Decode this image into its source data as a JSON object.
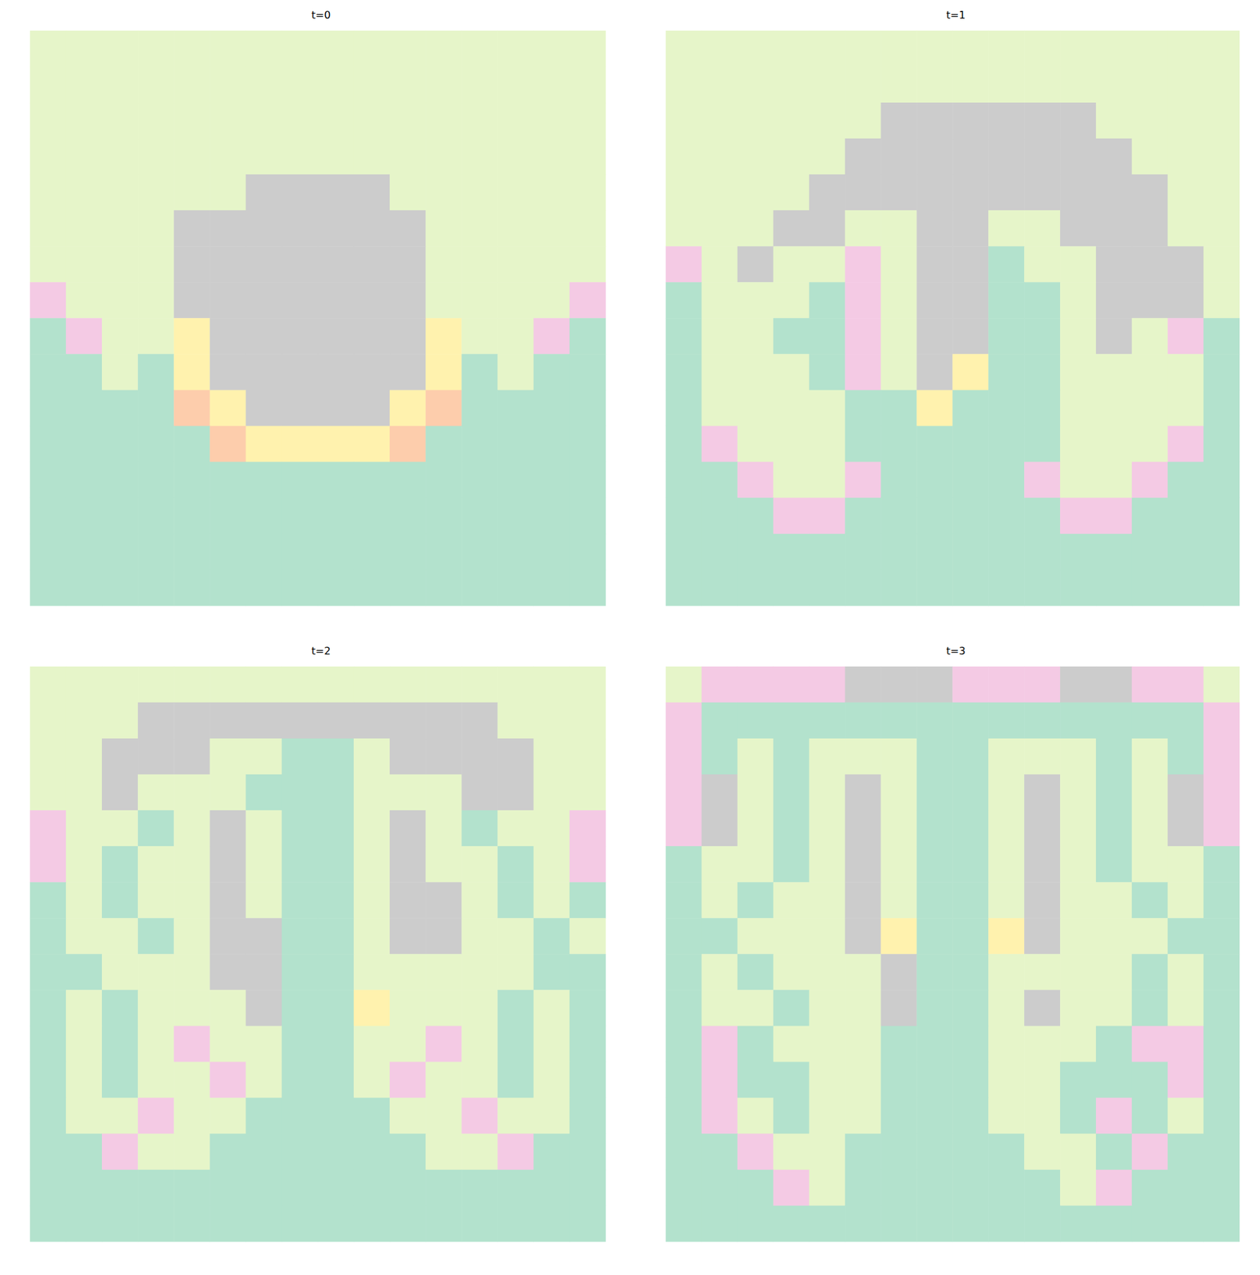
{
  "chart_data": [
    {
      "type": "heatmap",
      "title": "t=0",
      "tick_labels": false,
      "zlim": [
        0,
        7
      ],
      "colors": [
        "#b3e2cd",
        "#fdcdac",
        "#cbd5e8",
        "#f4cae4",
        "#e6f5c9",
        "#fff2ae",
        "#f1e2cc",
        "#cccccc"
      ],
      "cells": [
        [
          4,
          4,
          4,
          4,
          4,
          4,
          4,
          4,
          4,
          4,
          4,
          4,
          4,
          4,
          4,
          4
        ],
        [
          4,
          4,
          4,
          4,
          4,
          4,
          4,
          4,
          4,
          4,
          4,
          4,
          4,
          4,
          4,
          4
        ],
        [
          4,
          4,
          4,
          4,
          4,
          4,
          4,
          4,
          4,
          4,
          4,
          4,
          4,
          4,
          4,
          4
        ],
        [
          4,
          4,
          4,
          4,
          4,
          4,
          4,
          4,
          4,
          4,
          4,
          4,
          4,
          4,
          4,
          4
        ],
        [
          4,
          4,
          4,
          4,
          4,
          4,
          7,
          7,
          7,
          7,
          4,
          4,
          4,
          4,
          4,
          4
        ],
        [
          4,
          4,
          4,
          4,
          7,
          7,
          7,
          7,
          7,
          7,
          7,
          4,
          4,
          4,
          4,
          4
        ],
        [
          4,
          4,
          4,
          4,
          7,
          7,
          7,
          7,
          7,
          7,
          7,
          4,
          4,
          4,
          4,
          4
        ],
        [
          3,
          4,
          4,
          4,
          7,
          7,
          7,
          7,
          7,
          7,
          7,
          4,
          4,
          4,
          4,
          3
        ],
        [
          0,
          3,
          4,
          4,
          5,
          7,
          7,
          7,
          7,
          7,
          7,
          5,
          4,
          4,
          3,
          0
        ],
        [
          0,
          0,
          4,
          0,
          5,
          7,
          7,
          7,
          7,
          7,
          7,
          5,
          0,
          4,
          0,
          0
        ],
        [
          0,
          0,
          0,
          0,
          1,
          5,
          7,
          7,
          7,
          7,
          5,
          1,
          0,
          0,
          0,
          0
        ],
        [
          0,
          0,
          0,
          0,
          0,
          1,
          5,
          5,
          5,
          5,
          1,
          0,
          0,
          0,
          0,
          0
        ],
        [
          0,
          0,
          0,
          0,
          0,
          0,
          0,
          0,
          0,
          0,
          0,
          0,
          0,
          0,
          0,
          0
        ],
        [
          0,
          0,
          0,
          0,
          0,
          0,
          0,
          0,
          0,
          0,
          0,
          0,
          0,
          0,
          0,
          0
        ],
        [
          0,
          0,
          0,
          0,
          0,
          0,
          0,
          0,
          0,
          0,
          0,
          0,
          0,
          0,
          0,
          0
        ],
        [
          0,
          0,
          0,
          0,
          0,
          0,
          0,
          0,
          0,
          0,
          0,
          0,
          0,
          0,
          0,
          0
        ]
      ]
    },
    {
      "type": "heatmap",
      "title": "t=1",
      "tick_labels": false,
      "zlim": [
        0,
        7
      ],
      "colors": [
        "#b3e2cd",
        "#fdcdac",
        "#cbd5e8",
        "#f4cae4",
        "#e6f5c9",
        "#fff2ae",
        "#f1e2cc",
        "#cccccc"
      ],
      "cells": [
        [
          4,
          4,
          4,
          4,
          4,
          4,
          4,
          4,
          4,
          4,
          4,
          4,
          4,
          4,
          4,
          4
        ],
        [
          4,
          4,
          4,
          4,
          4,
          4,
          4,
          4,
          4,
          4,
          4,
          4,
          4,
          4,
          4,
          4
        ],
        [
          4,
          4,
          4,
          4,
          4,
          4,
          7,
          7,
          7,
          7,
          7,
          7,
          4,
          4,
          4,
          4
        ],
        [
          4,
          4,
          4,
          4,
          4,
          7,
          7,
          7,
          7,
          7,
          7,
          7,
          7,
          4,
          4,
          4
        ],
        [
          4,
          4,
          4,
          4,
          7,
          7,
          7,
          7,
          7,
          7,
          7,
          7,
          7,
          7,
          4,
          4
        ],
        [
          4,
          4,
          4,
          7,
          7,
          4,
          4,
          7,
          7,
          4,
          4,
          7,
          7,
          7,
          4,
          4
        ],
        [
          3,
          4,
          7,
          4,
          4,
          3,
          4,
          7,
          7,
          0,
          4,
          4,
          7,
          7,
          7,
          4
        ],
        [
          0,
          4,
          4,
          4,
          0,
          3,
          4,
          7,
          7,
          0,
          0,
          4,
          7,
          7,
          7,
          4
        ],
        [
          0,
          4,
          4,
          0,
          0,
          3,
          4,
          7,
          7,
          0,
          0,
          4,
          7,
          4,
          3,
          0
        ],
        [
          0,
          4,
          4,
          4,
          0,
          3,
          4,
          7,
          5,
          0,
          0,
          4,
          4,
          4,
          4,
          0
        ],
        [
          0,
          4,
          4,
          4,
          4,
          0,
          0,
          5,
          0,
          0,
          0,
          4,
          4,
          4,
          4,
          0
        ],
        [
          0,
          3,
          4,
          4,
          4,
          0,
          0,
          0,
          0,
          0,
          0,
          4,
          4,
          4,
          3,
          0
        ],
        [
          0,
          0,
          3,
          4,
          4,
          3,
          0,
          0,
          0,
          0,
          3,
          4,
          4,
          3,
          0,
          0
        ],
        [
          0,
          0,
          0,
          3,
          3,
          0,
          0,
          0,
          0,
          0,
          0,
          3,
          3,
          0,
          0,
          0
        ],
        [
          0,
          0,
          0,
          0,
          0,
          0,
          0,
          0,
          0,
          0,
          0,
          0,
          0,
          0,
          0,
          0
        ],
        [
          0,
          0,
          0,
          0,
          0,
          0,
          0,
          0,
          0,
          0,
          0,
          0,
          0,
          0,
          0,
          0
        ]
      ]
    },
    {
      "type": "heatmap",
      "title": "t=2",
      "tick_labels": false,
      "zlim": [
        0,
        7
      ],
      "colors": [
        "#b3e2cd",
        "#fdcdac",
        "#cbd5e8",
        "#f4cae4",
        "#e6f5c9",
        "#fff2ae",
        "#f1e2cc",
        "#cccccc"
      ],
      "cells": [
        [
          4,
          4,
          4,
          4,
          4,
          4,
          4,
          4,
          4,
          4,
          4,
          4,
          4,
          4,
          4,
          4
        ],
        [
          4,
          4,
          4,
          7,
          7,
          7,
          7,
          7,
          7,
          7,
          7,
          7,
          7,
          4,
          4,
          4
        ],
        [
          4,
          4,
          7,
          7,
          7,
          4,
          4,
          0,
          0,
          4,
          7,
          7,
          7,
          7,
          4,
          4
        ],
        [
          4,
          4,
          7,
          4,
          4,
          4,
          0,
          0,
          0,
          4,
          4,
          4,
          7,
          7,
          4,
          4
        ],
        [
          3,
          4,
          4,
          0,
          4,
          7,
          4,
          0,
          0,
          4,
          7,
          4,
          0,
          4,
          4,
          3
        ],
        [
          3,
          4,
          0,
          4,
          4,
          7,
          4,
          0,
          0,
          4,
          7,
          4,
          4,
          0,
          4,
          3
        ],
        [
          0,
          4,
          0,
          4,
          4,
          7,
          4,
          0,
          0,
          4,
          7,
          7,
          4,
          0,
          4,
          0
        ],
        [
          0,
          4,
          4,
          0,
          4,
          7,
          7,
          0,
          0,
          4,
          7,
          7,
          4,
          4,
          0,
          4
        ],
        [
          0,
          0,
          4,
          4,
          4,
          7,
          7,
          0,
          0,
          4,
          4,
          4,
          4,
          4,
          0,
          0
        ],
        [
          0,
          4,
          0,
          4,
          4,
          4,
          7,
          0,
          0,
          5,
          4,
          4,
          4,
          0,
          4,
          0
        ],
        [
          0,
          4,
          0,
          4,
          3,
          4,
          4,
          0,
          0,
          4,
          4,
          3,
          4,
          0,
          4,
          0
        ],
        [
          0,
          4,
          0,
          4,
          4,
          3,
          4,
          0,
          0,
          4,
          3,
          4,
          4,
          0,
          4,
          0
        ],
        [
          0,
          4,
          4,
          3,
          4,
          4,
          0,
          0,
          0,
          0,
          4,
          4,
          3,
          4,
          4,
          0
        ],
        [
          0,
          0,
          3,
          4,
          4,
          0,
          0,
          0,
          0,
          0,
          0,
          4,
          4,
          3,
          0,
          0
        ],
        [
          0,
          0,
          0,
          0,
          0,
          0,
          0,
          0,
          0,
          0,
          0,
          0,
          0,
          0,
          0,
          0
        ],
        [
          0,
          0,
          0,
          0,
          0,
          0,
          0,
          0,
          0,
          0,
          0,
          0,
          0,
          0,
          0,
          0
        ]
      ]
    },
    {
      "type": "heatmap",
      "title": "t=3",
      "tick_labels": false,
      "zlim": [
        0,
        7
      ],
      "colors": [
        "#b3e2cd",
        "#fdcdac",
        "#cbd5e8",
        "#f4cae4",
        "#e6f5c9",
        "#fff2ae",
        "#f1e2cc",
        "#cccccc"
      ],
      "cells": [
        [
          4,
          3,
          3,
          3,
          3,
          7,
          7,
          7,
          3,
          3,
          3,
          7,
          7,
          3,
          3,
          4
        ],
        [
          3,
          0,
          0,
          0,
          0,
          0,
          0,
          0,
          0,
          0,
          0,
          0,
          0,
          0,
          0,
          3
        ],
        [
          3,
          0,
          4,
          0,
          4,
          4,
          4,
          0,
          0,
          4,
          4,
          4,
          0,
          4,
          0,
          3
        ],
        [
          3,
          7,
          4,
          0,
          4,
          7,
          4,
          0,
          0,
          4,
          7,
          4,
          0,
          4,
          7,
          3
        ],
        [
          3,
          7,
          4,
          0,
          4,
          7,
          4,
          0,
          0,
          4,
          7,
          4,
          0,
          4,
          7,
          3
        ],
        [
          0,
          4,
          4,
          0,
          4,
          7,
          4,
          0,
          0,
          4,
          7,
          4,
          0,
          4,
          4,
          0
        ],
        [
          0,
          4,
          0,
          4,
          4,
          7,
          4,
          0,
          0,
          4,
          7,
          4,
          4,
          0,
          4,
          0
        ],
        [
          0,
          0,
          4,
          4,
          4,
          7,
          5,
          0,
          0,
          5,
          7,
          4,
          4,
          4,
          0,
          0
        ],
        [
          0,
          4,
          0,
          4,
          4,
          4,
          7,
          0,
          0,
          4,
          4,
          4,
          4,
          0,
          4,
          0
        ],
        [
          0,
          4,
          4,
          0,
          4,
          4,
          7,
          0,
          0,
          4,
          7,
          4,
          4,
          0,
          4,
          0
        ],
        [
          0,
          3,
          0,
          4,
          4,
          4,
          0,
          0,
          0,
          4,
          4,
          4,
          0,
          3,
          3,
          0
        ],
        [
          0,
          3,
          0,
          0,
          4,
          4,
          0,
          0,
          0,
          4,
          4,
          0,
          0,
          0,
          3,
          0
        ],
        [
          0,
          3,
          4,
          0,
          4,
          4,
          0,
          0,
          0,
          4,
          4,
          0,
          3,
          0,
          4,
          0
        ],
        [
          0,
          0,
          3,
          4,
          4,
          0,
          0,
          0,
          0,
          0,
          4,
          4,
          0,
          3,
          0,
          0
        ],
        [
          0,
          0,
          0,
          3,
          4,
          0,
          0,
          0,
          0,
          0,
          0,
          4,
          3,
          0,
          0,
          0
        ],
        [
          0,
          0,
          0,
          0,
          0,
          0,
          0,
          0,
          0,
          0,
          0,
          0,
          0,
          0,
          0,
          0
        ]
      ]
    }
  ]
}
